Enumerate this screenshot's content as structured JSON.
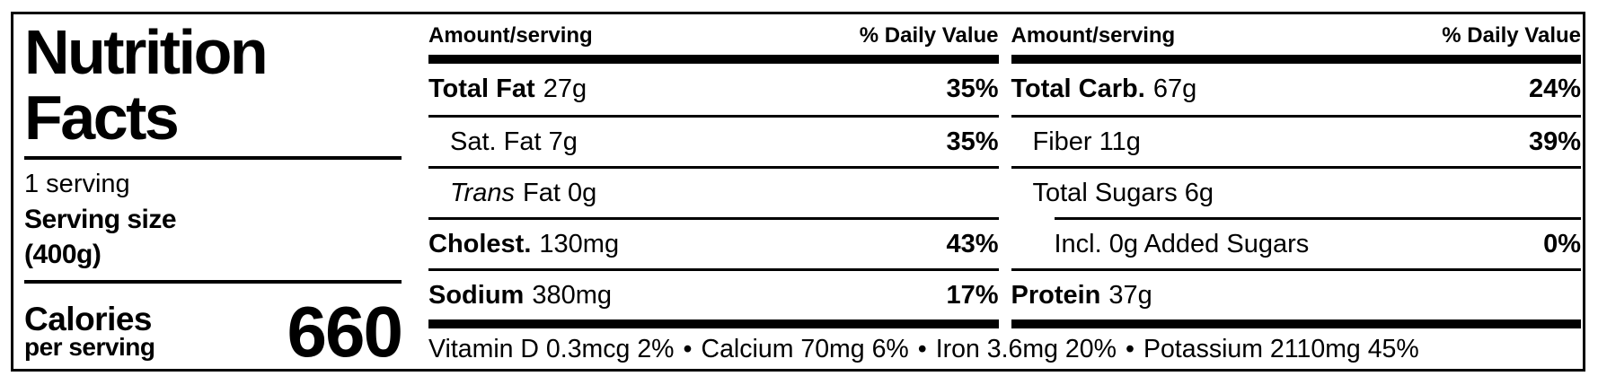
{
  "label": {
    "title": "Nutrition Facts",
    "servings": "1 serving",
    "serving_size_label": "Serving size",
    "serving_size_value": "(400g)",
    "calories_label": "Calories",
    "calories_sublabel": "per serving",
    "calories_value": "660"
  },
  "table": {
    "header": {
      "amount": "Amount/serving",
      "daily_value": "% Daily Value"
    },
    "left_rows": [
      {
        "label_strong": "Total Fat",
        "label_rest": "27g",
        "dv": "35%"
      },
      {
        "label_strong": "",
        "label_rest": "Sat. Fat 7g",
        "dv": "35%"
      },
      {
        "label_strong": "",
        "label_italic": "Trans",
        "label_rest": "Fat 0g",
        "dv": ""
      },
      {
        "label_strong": "Cholest.",
        "label_rest": "130mg",
        "dv": "43%"
      },
      {
        "label_strong": "Sodium",
        "label_rest": "380mg",
        "dv": "17%"
      }
    ],
    "right_rows": [
      {
        "label_strong": "Total Carb.",
        "label_rest": "67g",
        "dv": "24%"
      },
      {
        "label_strong": "",
        "label_rest": "Fiber 11g",
        "dv": "39%"
      },
      {
        "label_strong": "",
        "label_rest": "Total Sugars 6g",
        "dv": ""
      },
      {
        "label_strong": "",
        "label_rest": "Incl. 0g Added Sugars",
        "dv": "0%"
      },
      {
        "label_strong": "Protein",
        "label_rest": "37g",
        "dv": ""
      }
    ]
  },
  "footer": {
    "separator": "•",
    "items": [
      "Vitamin D 0.3mcg 2%",
      "Calcium 70mg 6%",
      "Iron 3.6mg 20%",
      "Potassium 2110mg 45%"
    ]
  },
  "colors": {
    "ink": "#000000",
    "background": "#ffffff"
  }
}
